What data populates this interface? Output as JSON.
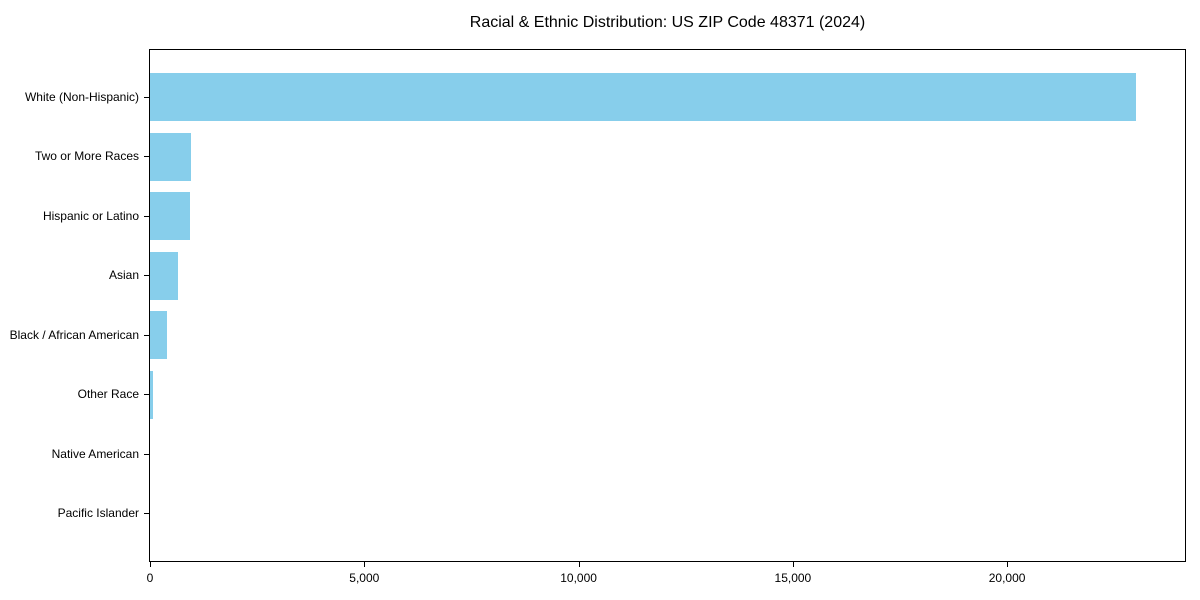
{
  "figure": {
    "title": "Racial & Ethnic Distribution: US ZIP Code 48371 (2024)"
  },
  "chart_data": {
    "type": "bar",
    "orientation": "horizontal",
    "title": "Racial & Ethnic Distribution: US ZIP Code 48371 (2024)",
    "categories": [
      "White (Non-Hispanic)",
      "Two or More Races",
      "Hispanic or Latino",
      "Asian",
      "Black / African American",
      "Other Race",
      "Native American",
      "Pacific Islander"
    ],
    "values": [
      23000,
      960,
      940,
      650,
      400,
      60,
      0,
      0
    ],
    "xlabel": "",
    "ylabel": "",
    "xlim": [
      0,
      24150
    ],
    "x_ticks": [
      0,
      5000,
      10000,
      15000,
      20000
    ],
    "x_tick_labels": [
      "0",
      "5,000",
      "10,000",
      "15,000",
      "20,000"
    ],
    "bar_color": "#87CEEB",
    "axis_color": "#000000",
    "text_color": "#000000",
    "background_color": "#ffffff",
    "grid": false,
    "legend": null
  }
}
